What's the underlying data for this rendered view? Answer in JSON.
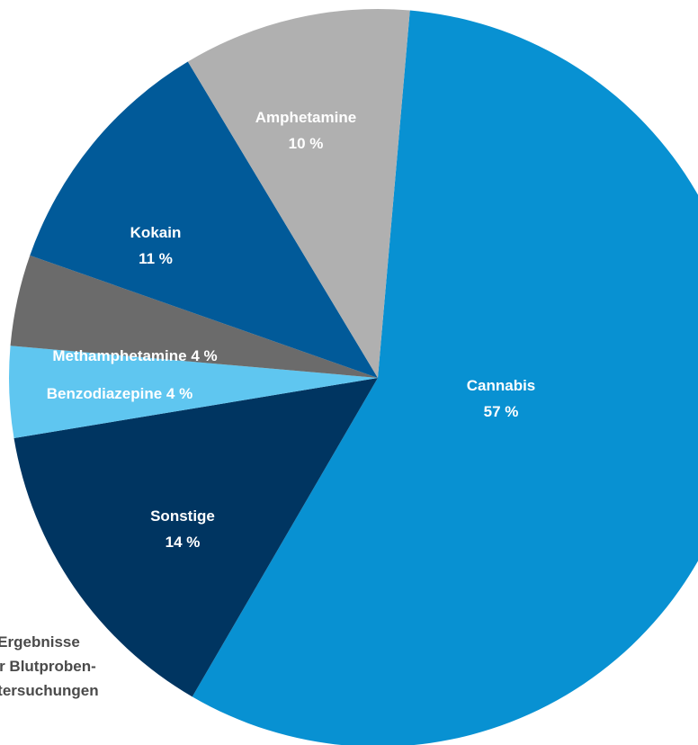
{
  "chart_data": {
    "type": "pie",
    "title": "",
    "center_text": [
      "Ergebnisse",
      "der Blutproben-",
      "untersuchungen"
    ],
    "slices": [
      {
        "label": "Cannabis",
        "value": 57,
        "value_label": "57 %",
        "color": "#0891d2",
        "label_color": "#ffffff"
      },
      {
        "label": "Sonstige",
        "value": 14,
        "value_label": "14 %",
        "color": "#003561",
        "label_color": "#ffffff"
      },
      {
        "label": "Benzodiazepine",
        "value": 4,
        "value_label": "Benzodiazepine 4 %",
        "color": "#5fc6f0",
        "label_color": "#ffffff"
      },
      {
        "label": "Methamphetamine",
        "value": 4,
        "value_label": "Methamphetamine 4 %",
        "color": "#6b6b6b",
        "label_color": "#ffffff"
      },
      {
        "label": "Kokain",
        "value": 11,
        "value_label": "11 %",
        "color": "#015a99",
        "label_color": "#ffffff"
      },
      {
        "label": "Amphetamine",
        "value": 10,
        "value_label": "10 %",
        "color": "#b0b0b0",
        "label_color": "#ffffff"
      }
    ]
  }
}
